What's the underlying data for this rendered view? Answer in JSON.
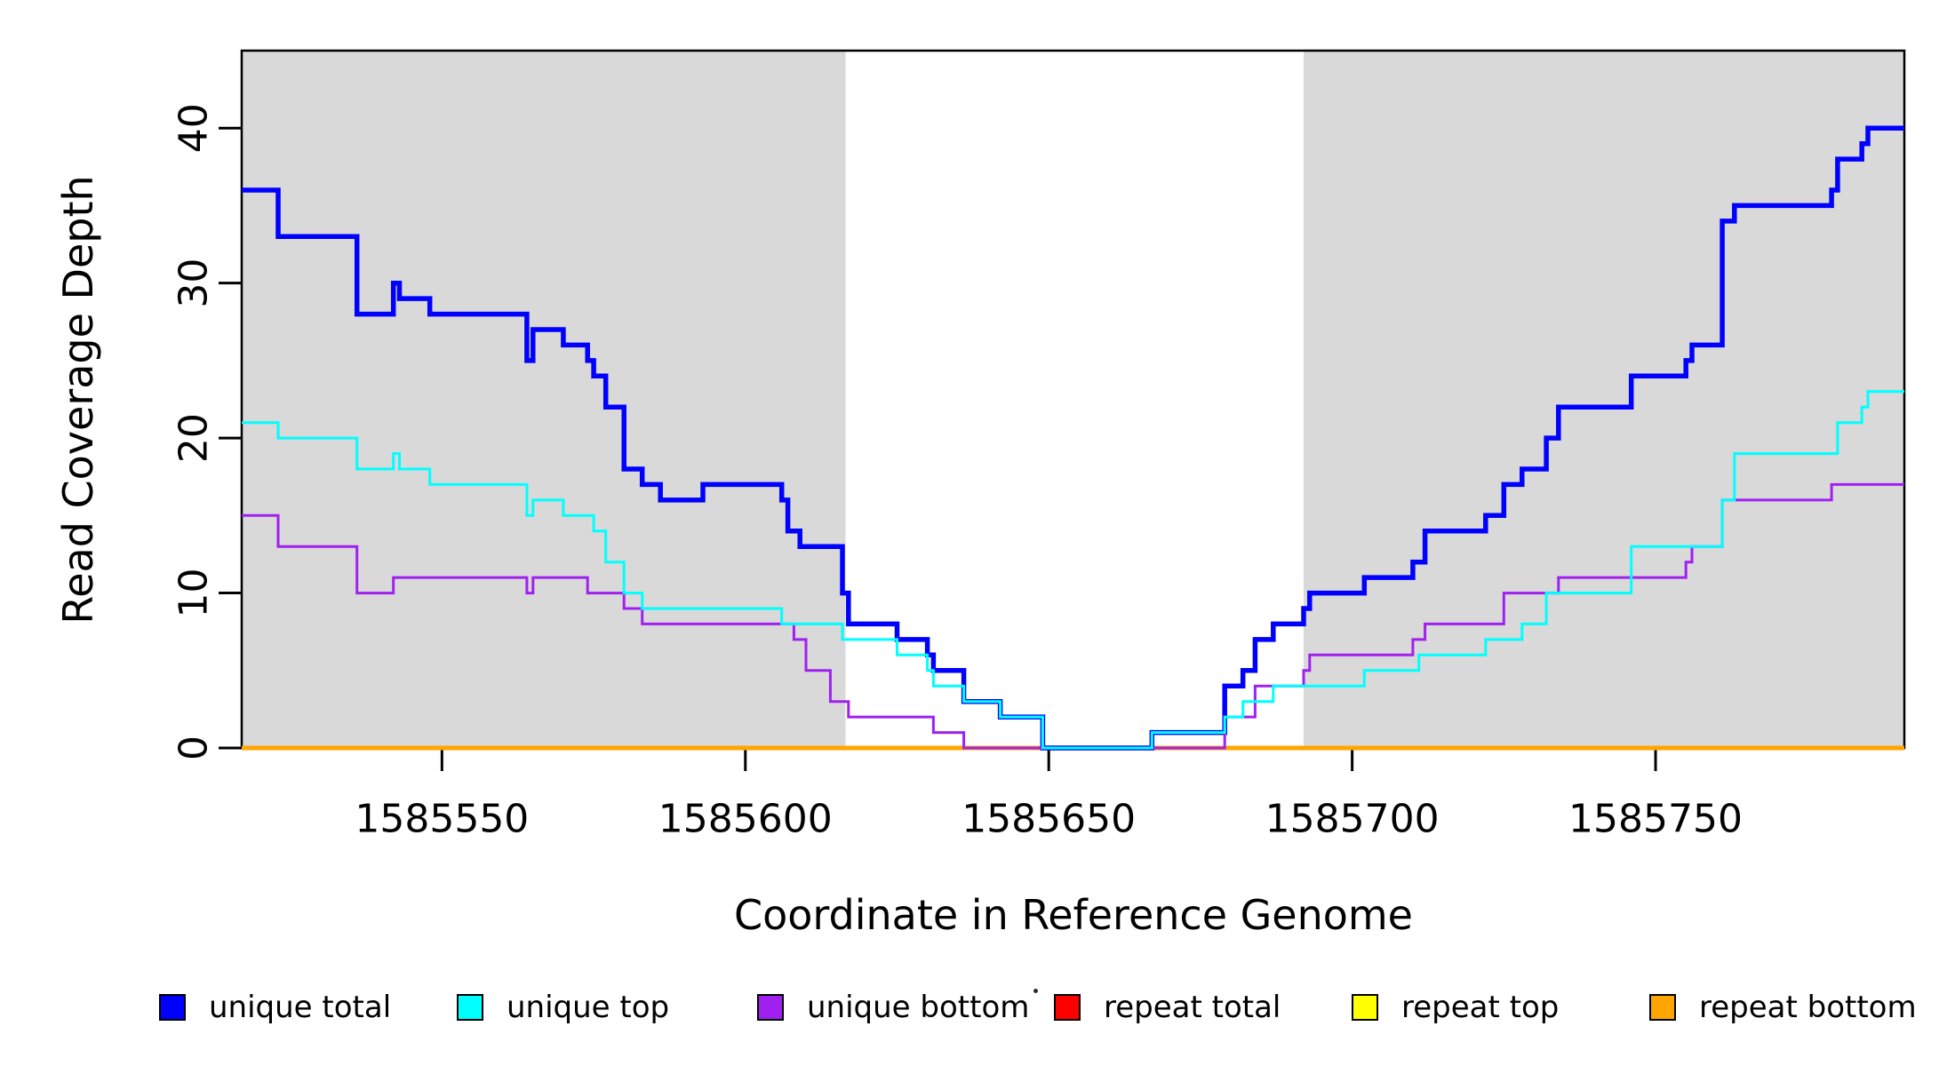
{
  "figure": {
    "background": "#ffffff",
    "plot_bg": "#ffffff"
  },
  "chart_data": {
    "type": "line",
    "subtype": "step-after-coverage-plot",
    "title": "",
    "xlabel": "Coordinate in Reference Genome",
    "ylabel": "Read Coverage Depth",
    "xlim": [
      1585517,
      1585791
    ],
    "ylim": [
      0,
      45
    ],
    "x_ticks": [
      1585550,
      1585600,
      1585650,
      1585700,
      1585750
    ],
    "y_ticks": [
      0,
      10,
      20,
      30,
      40
    ],
    "grid": false,
    "highlight_color": "#d9d9d9",
    "highlight_regions": [
      [
        1585517,
        1585616.5
      ],
      [
        1585692,
        1585791
      ]
    ],
    "series": [
      {
        "name": "repeat total",
        "color": "#ff0000",
        "line_width": 3,
        "points": [
          [
            1585517,
            0
          ],
          [
            1585791,
            0
          ]
        ]
      },
      {
        "name": "repeat top",
        "color": "#ffff00",
        "line_width": 3,
        "points": [
          [
            1585517,
            0
          ],
          [
            1585791,
            0
          ]
        ]
      },
      {
        "name": "repeat bottom",
        "color": "#ffa500",
        "line_width": 5,
        "points": [
          [
            1585517,
            0
          ],
          [
            1585791,
            0
          ]
        ]
      },
      {
        "name": "unique total",
        "color": "#0000ff",
        "line_width": 5.5,
        "points": [
          [
            1585517,
            36
          ],
          [
            1585523,
            33
          ],
          [
            1585536,
            28
          ],
          [
            1585542,
            30
          ],
          [
            1585543,
            29
          ],
          [
            1585548,
            28
          ],
          [
            1585564,
            25
          ],
          [
            1585565,
            27
          ],
          [
            1585570,
            26
          ],
          [
            1585574,
            25
          ],
          [
            1585575,
            24
          ],
          [
            1585577,
            22
          ],
          [
            1585580,
            18
          ],
          [
            1585583,
            17
          ],
          [
            1585586,
            16
          ],
          [
            1585593,
            17
          ],
          [
            1585606,
            16
          ],
          [
            1585607,
            14
          ],
          [
            1585609,
            13
          ],
          [
            1585616,
            10
          ],
          [
            1585617,
            8
          ],
          [
            1585625,
            7
          ],
          [
            1585630,
            6
          ],
          [
            1585631,
            5
          ],
          [
            1585636,
            3
          ],
          [
            1585642,
            2
          ],
          [
            1585649,
            0
          ],
          [
            1585667,
            1
          ],
          [
            1585679,
            4
          ],
          [
            1585682,
            5
          ],
          [
            1585684,
            7
          ],
          [
            1585687,
            8
          ],
          [
            1585692,
            9
          ],
          [
            1585693,
            10
          ],
          [
            1585702,
            11
          ],
          [
            1585710,
            12
          ],
          [
            1585712,
            14
          ],
          [
            1585722,
            15
          ],
          [
            1585725,
            17
          ],
          [
            1585728,
            18
          ],
          [
            1585732,
            20
          ],
          [
            1585734,
            22
          ],
          [
            1585746,
            24
          ],
          [
            1585755,
            25
          ],
          [
            1585756,
            26
          ],
          [
            1585761,
            34
          ],
          [
            1585763,
            35
          ],
          [
            1585779,
            36
          ],
          [
            1585780,
            38
          ],
          [
            1585784,
            39
          ],
          [
            1585785,
            40
          ],
          [
            1585791,
            40
          ]
        ]
      },
      {
        "name": "unique bottom",
        "color": "#a020f0",
        "line_width": 3,
        "points": [
          [
            1585517,
            15
          ],
          [
            1585523,
            13
          ],
          [
            1585536,
            10
          ],
          [
            1585542,
            11
          ],
          [
            1585564,
            10
          ],
          [
            1585565,
            11
          ],
          [
            1585574,
            10
          ],
          [
            1585580,
            9
          ],
          [
            1585583,
            8
          ],
          [
            1585608,
            7
          ],
          [
            1585610,
            5
          ],
          [
            1585614,
            3
          ],
          [
            1585617,
            2
          ],
          [
            1585631,
            1
          ],
          [
            1585636,
            0
          ],
          [
            1585679,
            2
          ],
          [
            1585684,
            4
          ],
          [
            1585692,
            5
          ],
          [
            1585693,
            6
          ],
          [
            1585710,
            7
          ],
          [
            1585712,
            8
          ],
          [
            1585725,
            10
          ],
          [
            1585734,
            11
          ],
          [
            1585755,
            12
          ],
          [
            1585756,
            13
          ],
          [
            1585761,
            16
          ],
          [
            1585779,
            17
          ],
          [
            1585791,
            17
          ]
        ]
      },
      {
        "name": "unique top",
        "color": "#00ffff",
        "line_width": 3,
        "points": [
          [
            1585517,
            21
          ],
          [
            1585523,
            20
          ],
          [
            1585536,
            18
          ],
          [
            1585542,
            19
          ],
          [
            1585543,
            18
          ],
          [
            1585548,
            17
          ],
          [
            1585564,
            15
          ],
          [
            1585565,
            16
          ],
          [
            1585570,
            15
          ],
          [
            1585575,
            14
          ],
          [
            1585577,
            12
          ],
          [
            1585580,
            10
          ],
          [
            1585583,
            9
          ],
          [
            1585606,
            8
          ],
          [
            1585616,
            7
          ],
          [
            1585625,
            6
          ],
          [
            1585630,
            5
          ],
          [
            1585631,
            4
          ],
          [
            1585636,
            3
          ],
          [
            1585642,
            2
          ],
          [
            1585649,
            0
          ],
          [
            1585667,
            1
          ],
          [
            1585679,
            2
          ],
          [
            1585682,
            3
          ],
          [
            1585687,
            4
          ],
          [
            1585702,
            5
          ],
          [
            1585711,
            6
          ],
          [
            1585722,
            7
          ],
          [
            1585728,
            8
          ],
          [
            1585732,
            10
          ],
          [
            1585746,
            13
          ],
          [
            1585761,
            16
          ],
          [
            1585763,
            19
          ],
          [
            1585780,
            21
          ],
          [
            1585784,
            22
          ],
          [
            1585785,
            23
          ],
          [
            1585791,
            23
          ]
        ]
      }
    ],
    "legend": {
      "position": "bottom",
      "items": [
        {
          "label": "unique total",
          "color": "#0000ff"
        },
        {
          "label": "unique top",
          "color": "#00ffff"
        },
        {
          "label": "unique bottom",
          "color": "#a020f0"
        },
        {
          "label": "repeat total",
          "color": "#ff0000"
        },
        {
          "label": "repeat top",
          "color": "#ffff00"
        },
        {
          "label": "repeat bottom",
          "color": "#ffa500"
        }
      ]
    }
  }
}
